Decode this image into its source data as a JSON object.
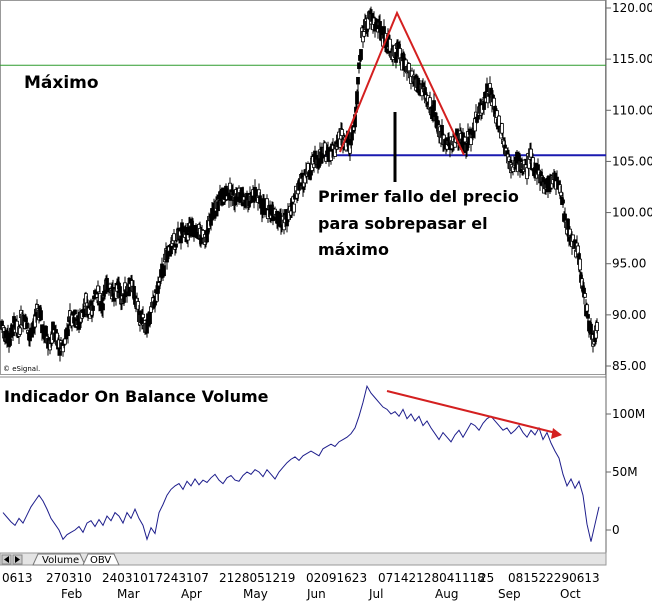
{
  "chart_data": [
    {
      "type": "candlestick",
      "ylim": [
        85,
        120
      ],
      "y_ticks": [
        "120.00",
        "115.00",
        "110.00",
        "105.00",
        "100.00",
        "95.00",
        "90.00",
        "85.00"
      ],
      "y_tick_values": [
        120,
        115,
        110,
        105,
        100,
        95,
        90,
        85
      ],
      "resistance_level": 114.4,
      "neckline_level": 105.6,
      "x_months": [
        "Feb",
        "Mar",
        "Apr",
        "May",
        "Jun",
        "Jul",
        "Aug",
        "Sep",
        "Oct"
      ],
      "x_day_groups": [
        "0613",
        "270310",
        "24031017243107",
        "2128051219",
        "02091623",
        "07142128041118",
        "25",
        "081522290613"
      ],
      "close_path": [
        [
          0,
          89
        ],
        [
          4,
          88
        ],
        [
          8,
          87.5
        ],
        [
          12,
          89
        ],
        [
          16,
          88
        ],
        [
          20,
          90
        ],
        [
          24,
          89.5
        ],
        [
          28,
          88
        ],
        [
          32,
          89
        ],
        [
          36,
          90.5
        ],
        [
          40,
          89
        ],
        [
          44,
          88
        ],
        [
          48,
          87.5
        ],
        [
          52,
          88.5
        ],
        [
          56,
          87
        ],
        [
          60,
          86.5
        ],
        [
          64,
          88
        ],
        [
          68,
          89.5
        ],
        [
          72,
          90
        ],
        [
          76,
          89
        ],
        [
          80,
          90.5
        ],
        [
          84,
          91
        ],
        [
          88,
          90
        ],
        [
          92,
          91.5
        ],
        [
          96,
          92
        ],
        [
          100,
          91
        ],
        [
          104,
          92.5
        ],
        [
          108,
          93
        ],
        [
          112,
          92
        ],
        [
          116,
          92.5
        ],
        [
          120,
          91.5
        ],
        [
          124,
          92.5
        ],
        [
          128,
          93
        ],
        [
          132,
          92
        ],
        [
          136,
          90.5
        ],
        [
          140,
          89.5
        ],
        [
          144,
          89
        ],
        [
          148,
          90
        ],
        [
          152,
          91
        ],
        [
          156,
          92.5
        ],
        [
          160,
          94
        ],
        [
          164,
          95.5
        ],
        [
          168,
          96.5
        ],
        [
          172,
          97
        ],
        [
          176,
          97.5
        ],
        [
          180,
          98
        ],
        [
          184,
          97.5
        ],
        [
          188,
          98.5
        ],
        [
          192,
          97.8
        ],
        [
          196,
          98.2
        ],
        [
          200,
          97.5
        ],
        [
          204,
          97.8
        ],
        [
          208,
          99
        ],
        [
          212,
          100
        ],
        [
          216,
          101
        ],
        [
          220,
          101.5
        ],
        [
          224,
          102
        ],
        [
          228,
          101.8
        ],
        [
          232,
          101.5
        ],
        [
          236,
          101.8
        ],
        [
          240,
          101.5
        ],
        [
          244,
          101.2
        ],
        [
          248,
          101.5
        ],
        [
          252,
          101.8
        ],
        [
          256,
          101.5
        ],
        [
          260,
          100.8
        ],
        [
          264,
          100.5
        ],
        [
          268,
          100
        ],
        [
          272,
          100.5
        ],
        [
          276,
          99.5
        ],
        [
          280,
          99
        ],
        [
          284,
          99.5
        ],
        [
          288,
          100
        ],
        [
          292,
          101
        ],
        [
          296,
          102.5
        ],
        [
          300,
          103
        ],
        [
          304,
          103.5
        ],
        [
          308,
          104
        ],
        [
          312,
          104.8
        ],
        [
          316,
          105.2
        ],
        [
          320,
          105.5
        ],
        [
          324,
          105.8
        ],
        [
          328,
          106
        ],
        [
          332,
          106.2
        ],
        [
          336,
          107
        ],
        [
          340,
          107.5
        ],
        [
          344,
          107.2
        ],
        [
          348,
          106.8
        ],
        [
          352,
          108
        ],
        [
          356,
          113
        ],
        [
          360,
          117
        ],
        [
          364,
          118.5
        ],
        [
          368,
          119
        ],
        [
          372,
          118.5
        ],
        [
          376,
          118
        ],
        [
          380,
          117.5
        ],
        [
          384,
          117
        ],
        [
          388,
          116
        ],
        [
          392,
          115.5
        ],
        [
          396,
          116
        ],
        [
          400,
          115
        ],
        [
          404,
          114
        ],
        [
          408,
          113.5
        ],
        [
          412,
          113
        ],
        [
          416,
          112.5
        ],
        [
          420,
          112
        ],
        [
          424,
          111
        ],
        [
          428,
          110.5
        ],
        [
          432,
          110
        ],
        [
          436,
          108.5
        ],
        [
          440,
          107.5
        ],
        [
          444,
          107
        ],
        [
          448,
          106.5
        ],
        [
          452,
          107
        ],
        [
          456,
          107.5
        ],
        [
          460,
          107.2
        ],
        [
          464,
          106.5
        ],
        [
          468,
          107.5
        ],
        [
          472,
          108.5
        ],
        [
          476,
          109.5
        ],
        [
          480,
          110.5
        ],
        [
          484,
          111.5
        ],
        [
          488,
          111.8
        ],
        [
          492,
          110.5
        ],
        [
          496,
          109
        ],
        [
          500,
          108
        ],
        [
          504,
          106
        ],
        [
          508,
          105
        ],
        [
          512,
          104.5
        ],
        [
          516,
          105
        ],
        [
          520,
          104.8
        ],
        [
          524,
          104
        ],
        [
          528,
          105.5
        ],
        [
          532,
          104.5
        ],
        [
          536,
          104
        ],
        [
          540,
          103
        ],
        [
          544,
          102.5
        ],
        [
          548,
          103
        ],
        [
          552,
          103.5
        ],
        [
          556,
          103
        ],
        [
          560,
          101
        ],
        [
          564,
          99
        ],
        [
          568,
          98
        ],
        [
          572,
          97
        ],
        [
          576,
          96
        ],
        [
          580,
          93
        ],
        [
          584,
          91
        ],
        [
          588,
          88.5
        ],
        [
          592,
          87
        ],
        [
          596,
          89.5
        ]
      ]
    },
    {
      "type": "line",
      "y_ticks": [
        "100M",
        "50M",
        "0"
      ],
      "y_tick_values": [
        100,
        50,
        0
      ],
      "ylim": [
        -12,
        128
      ],
      "values": [
        [
          0,
          15
        ],
        [
          4,
          11
        ],
        [
          8,
          7
        ],
        [
          12,
          4
        ],
        [
          16,
          10
        ],
        [
          20,
          6
        ],
        [
          24,
          13
        ],
        [
          28,
          20
        ],
        [
          32,
          25
        ],
        [
          36,
          30
        ],
        [
          40,
          25
        ],
        [
          44,
          18
        ],
        [
          48,
          10
        ],
        [
          52,
          5
        ],
        [
          56,
          0
        ],
        [
          60,
          -8
        ],
        [
          64,
          -4
        ],
        [
          68,
          -2
        ],
        [
          72,
          0
        ],
        [
          76,
          3
        ],
        [
          80,
          -2
        ],
        [
          84,
          6
        ],
        [
          88,
          8
        ],
        [
          92,
          3
        ],
        [
          96,
          9
        ],
        [
          100,
          4
        ],
        [
          104,
          12
        ],
        [
          108,
          8
        ],
        [
          112,
          15
        ],
        [
          116,
          12
        ],
        [
          120,
          6
        ],
        [
          124,
          15
        ],
        [
          128,
          10
        ],
        [
          132,
          18
        ],
        [
          136,
          10
        ],
        [
          140,
          4
        ],
        [
          144,
          -8
        ],
        [
          148,
          2
        ],
        [
          152,
          -3
        ],
        [
          156,
          15
        ],
        [
          160,
          22
        ],
        [
          164,
          30
        ],
        [
          168,
          35
        ],
        [
          172,
          38
        ],
        [
          176,
          40
        ],
        [
          180,
          35
        ],
        [
          184,
          42
        ],
        [
          188,
          38
        ],
        [
          192,
          44
        ],
        [
          196,
          39
        ],
        [
          200,
          43
        ],
        [
          204,
          41
        ],
        [
          208,
          45
        ],
        [
          212,
          48
        ],
        [
          216,
          43
        ],
        [
          220,
          40
        ],
        [
          224,
          45
        ],
        [
          228,
          47
        ],
        [
          232,
          43
        ],
        [
          236,
          42
        ],
        [
          240,
          47
        ],
        [
          244,
          50
        ],
        [
          248,
          48
        ],
        [
          252,
          52
        ],
        [
          256,
          50
        ],
        [
          260,
          46
        ],
        [
          264,
          52
        ],
        [
          268,
          48
        ],
        [
          272,
          44
        ],
        [
          276,
          50
        ],
        [
          280,
          54
        ],
        [
          284,
          58
        ],
        [
          288,
          61
        ],
        [
          292,
          63
        ],
        [
          296,
          60
        ],
        [
          300,
          64
        ],
        [
          304,
          66
        ],
        [
          308,
          68
        ],
        [
          312,
          66
        ],
        [
          316,
          64
        ],
        [
          320,
          70
        ],
        [
          324,
          72
        ],
        [
          328,
          74
        ],
        [
          332,
          72
        ],
        [
          336,
          76
        ],
        [
          340,
          78
        ],
        [
          344,
          80
        ],
        [
          348,
          83
        ],
        [
          352,
          88
        ],
        [
          356,
          98
        ],
        [
          360,
          110
        ],
        [
          364,
          124
        ],
        [
          368,
          118
        ],
        [
          372,
          114
        ],
        [
          376,
          110
        ],
        [
          380,
          106
        ],
        [
          384,
          104
        ],
        [
          388,
          100
        ],
        [
          392,
          102
        ],
        [
          396,
          98
        ],
        [
          400,
          104
        ],
        [
          404,
          96
        ],
        [
          408,
          100
        ],
        [
          412,
          94
        ],
        [
          416,
          98
        ],
        [
          420,
          90
        ],
        [
          424,
          94
        ],
        [
          428,
          88
        ],
        [
          432,
          83
        ],
        [
          436,
          78
        ],
        [
          440,
          84
        ],
        [
          444,
          80
        ],
        [
          448,
          76
        ],
        [
          452,
          82
        ],
        [
          456,
          86
        ],
        [
          460,
          80
        ],
        [
          464,
          86
        ],
        [
          468,
          92
        ],
        [
          472,
          90
        ],
        [
          476,
          86
        ],
        [
          480,
          92
        ],
        [
          484,
          96
        ],
        [
          488,
          98
        ],
        [
          492,
          94
        ],
        [
          496,
          90
        ],
        [
          500,
          86
        ],
        [
          504,
          88
        ],
        [
          508,
          83
        ],
        [
          512,
          86
        ],
        [
          516,
          90
        ],
        [
          520,
          84
        ],
        [
          524,
          80
        ],
        [
          528,
          86
        ],
        [
          532,
          82
        ],
        [
          536,
          88
        ],
        [
          540,
          78
        ],
        [
          544,
          84
        ],
        [
          548,
          75
        ],
        [
          552,
          68
        ],
        [
          556,
          62
        ],
        [
          560,
          48
        ],
        [
          564,
          38
        ],
        [
          568,
          44
        ],
        [
          572,
          36
        ],
        [
          576,
          42
        ],
        [
          580,
          30
        ],
        [
          584,
          5
        ],
        [
          588,
          -10
        ],
        [
          592,
          5
        ],
        [
          596,
          20
        ]
      ]
    }
  ],
  "annotations": {
    "maximo": "Máximo",
    "failure_line1": "Primer fallo del precio",
    "failure_line2": "para sobrepasar el",
    "failure_line3": "máximo",
    "obv_title": "Indicador On Balance Volume",
    "source": "© eSignal."
  },
  "tabs": [
    "Volume",
    "OBV"
  ],
  "colors": {
    "candle": "#000000",
    "resistance": "#2e9b2e",
    "neckline": "#1a1ab0",
    "triangle": "#d42020",
    "obv_line": "#1e1e8c",
    "obv_trend": "#d42020"
  }
}
